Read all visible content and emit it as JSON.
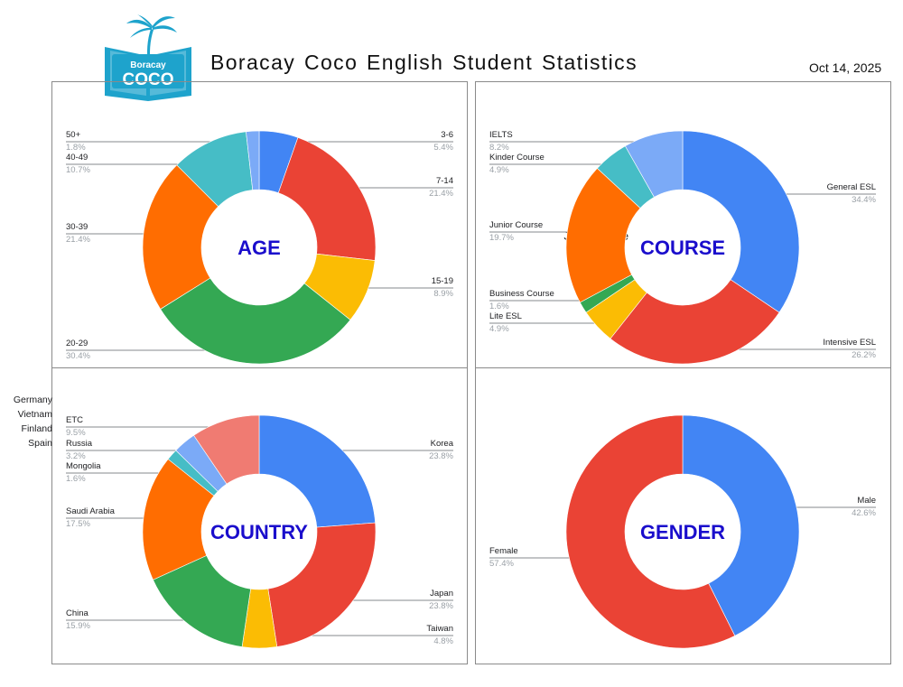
{
  "header": {
    "title": "Boracay Coco English Student Statistics",
    "date": "Oct 14, 2025",
    "logo_text": [
      "Boracay",
      "COCO"
    ]
  },
  "side_note": [
    "Germany",
    "Vietnam",
    "Finland",
    "Spain"
  ],
  "colors": {
    "blue": "#4285f4",
    "red": "#ea4335",
    "yellow": "#fbbc04",
    "green": "#34a853",
    "orange": "#ff6d01",
    "teal": "#46bdc6",
    "light_blue": "#7baaf7",
    "salmon": "#f07b72",
    "center_label": "#1a0dcc",
    "logo": "#1ea3cc"
  },
  "chart_data": [
    {
      "type": "pie",
      "center_label": "AGE",
      "slices": [
        {
          "label": "3-6",
          "value": 5.4,
          "color": "#4285f4"
        },
        {
          "label": "7-14",
          "value": 21.4,
          "color": "#ea4335"
        },
        {
          "label": "15-19",
          "value": 8.9,
          "color": "#fbbc04"
        },
        {
          "label": "20-29",
          "value": 30.4,
          "color": "#34a853"
        },
        {
          "label": "30-39",
          "value": 21.4,
          "color": "#ff6d01"
        },
        {
          "label": "40-49",
          "value": 10.7,
          "color": "#46bdc6"
        },
        {
          "label": "50+",
          "value": 1.8,
          "color": "#7baaf7"
        }
      ]
    },
    {
      "type": "pie",
      "center_label": "COURSE",
      "slices": [
        {
          "label": "General ESL",
          "value": 34.4,
          "color": "#4285f4"
        },
        {
          "label": "Intensive ESL",
          "value": 26.2,
          "color": "#ea4335"
        },
        {
          "label": "Lite ESL",
          "value": 4.9,
          "color": "#fbbc04"
        },
        {
          "label": "Business Course",
          "value": 1.6,
          "color": "#34a853"
        },
        {
          "label": "Junior Course",
          "value": 19.7,
          "color": "#ff6d01"
        },
        {
          "label": "Kinder Course",
          "value": 4.9,
          "color": "#46bdc6"
        },
        {
          "label": "IELTS",
          "value": 8.2,
          "color": "#7baaf7"
        }
      ]
    },
    {
      "type": "pie",
      "center_label": "COUNTRY",
      "slices": [
        {
          "label": "Korea",
          "value": 23.8,
          "color": "#4285f4"
        },
        {
          "label": "Japan",
          "value": 23.8,
          "color": "#ea4335"
        },
        {
          "label": "Taiwan",
          "value": 4.8,
          "color": "#fbbc04"
        },
        {
          "label": "China",
          "value": 15.9,
          "color": "#34a853"
        },
        {
          "label": "Saudi Arabia",
          "value": 17.5,
          "color": "#ff6d01"
        },
        {
          "label": "Mongolia",
          "value": 1.6,
          "color": "#46bdc6"
        },
        {
          "label": "Russia",
          "value": 3.2,
          "color": "#7baaf7"
        },
        {
          "label": "ETC",
          "value": 9.5,
          "color": "#f07b72"
        }
      ]
    },
    {
      "type": "pie",
      "center_label": "GENDER",
      "slices": [
        {
          "label": "Male",
          "value": 42.6,
          "color": "#4285f4"
        },
        {
          "label": "Female",
          "value": 57.4,
          "color": "#ea4335"
        }
      ]
    }
  ]
}
